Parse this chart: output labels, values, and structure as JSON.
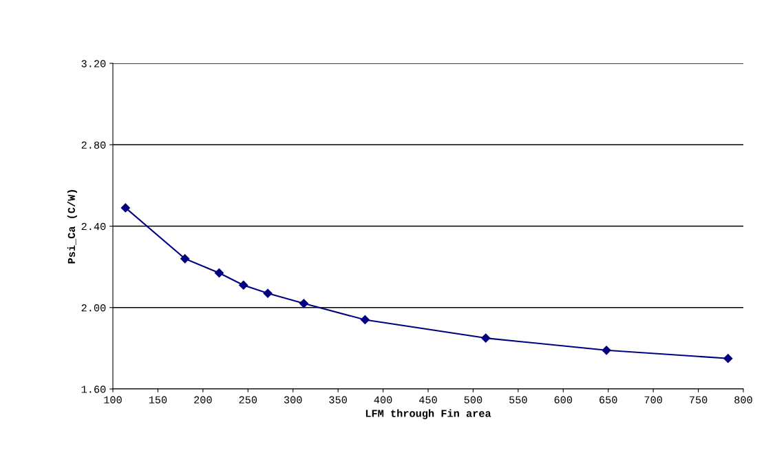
{
  "chart_data": {
    "type": "line",
    "xlabel": "LFM through Fin area",
    "ylabel": "Psi_Ca (C/W)",
    "x": [
      114,
      180,
      218,
      245,
      272,
      312,
      380,
      514,
      648,
      783
    ],
    "series": [
      {
        "color": "#000080",
        "values": [
          2.49,
          2.24,
          2.17,
          2.11,
          2.07,
          2.02,
          1.94,
          1.85,
          1.79,
          1.75
        ]
      }
    ],
    "xlim": [
      100,
      800
    ],
    "xticks": [
      100,
      150,
      200,
      250,
      300,
      350,
      400,
      450,
      500,
      550,
      600,
      650,
      700,
      750,
      800
    ],
    "ylim": [
      1.6,
      3.2
    ],
    "yticks": [
      {
        "value": 1.6,
        "label": "1.60"
      },
      {
        "value": 2.0,
        "label": "2.00"
      },
      {
        "value": 2.4,
        "label": "2.40"
      },
      {
        "value": 2.8,
        "label": "2.80"
      },
      {
        "value": 3.2,
        "label": "3.20"
      }
    ],
    "grid": "y",
    "marker": "diamond",
    "line_style": "solid",
    "legend": false
  }
}
